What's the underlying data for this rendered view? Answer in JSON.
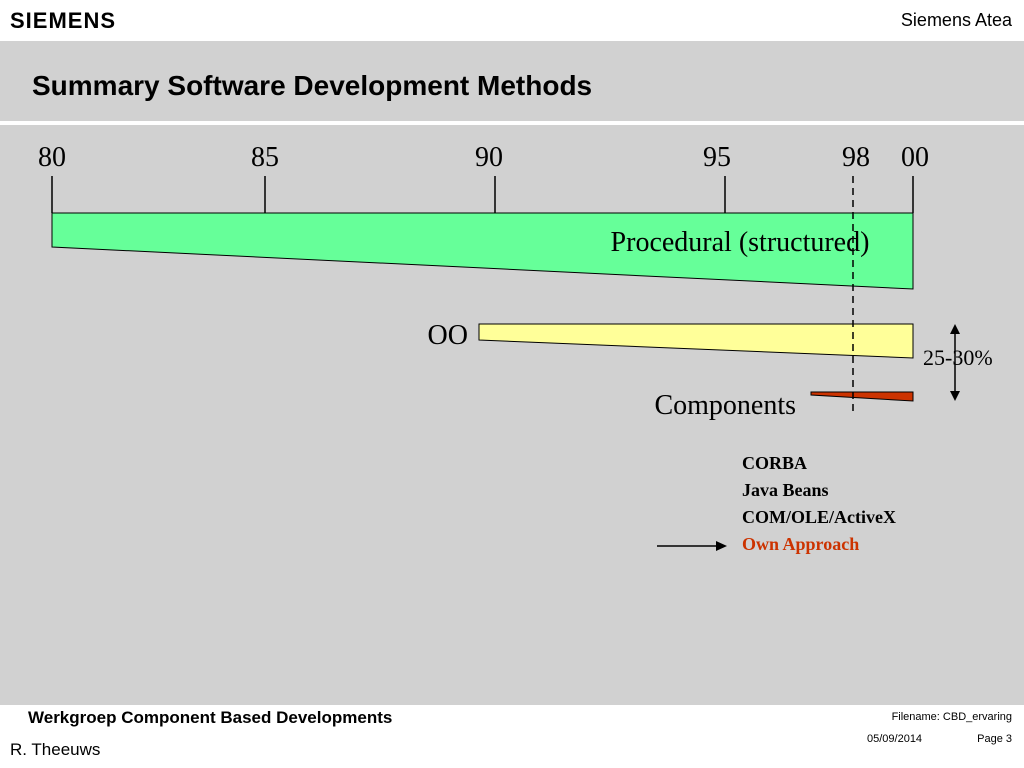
{
  "header": {
    "logo": "SIEMENS",
    "company": "Siemens Atea"
  },
  "title": "Summary Software Development Methods",
  "timeline": {
    "ticks": [
      "80",
      "85",
      "90",
      "95",
      "98",
      "00"
    ]
  },
  "methods": {
    "procedural": "Procedural (structured)",
    "oo": "OO",
    "components": "Components"
  },
  "range_label": "25-30%",
  "technologies": [
    "CORBA",
    "Java Beans",
    "COM/OLE/ActiveX",
    "Own Approach"
  ],
  "colors": {
    "procedural": "#66ff99",
    "oo": "#ffff99",
    "components": "#cc3300",
    "highlight_text": "#cc3300",
    "background": "#d1d1d1"
  },
  "footer": {
    "title": "Werkgroep Component Based Developments",
    "author": "R. Theeuws",
    "filename": "Filename: CBD_ervaring",
    "date": "05/09/2014",
    "page": "Page 3"
  }
}
